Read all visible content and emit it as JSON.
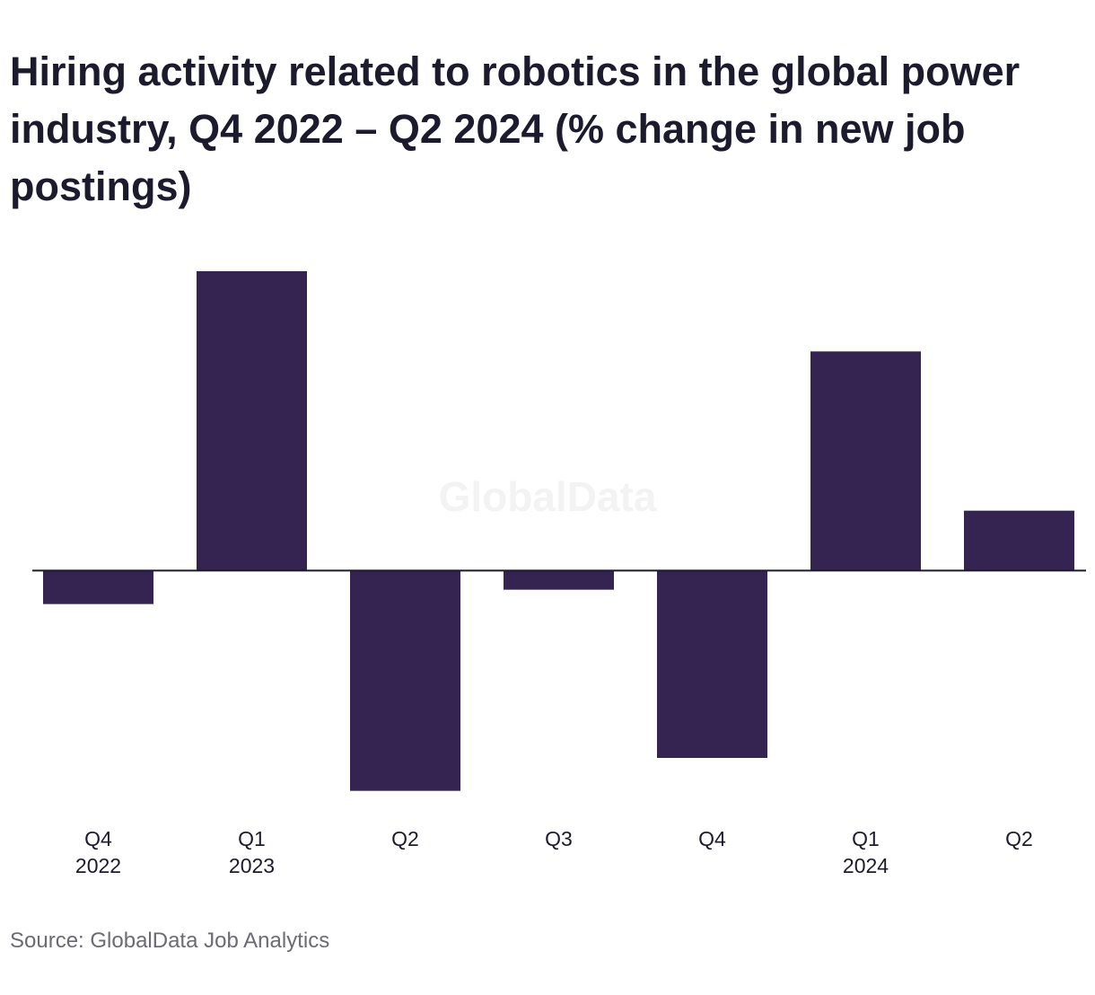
{
  "chart_data": {
    "type": "bar",
    "title": "Hiring activity related to robotics in the global power industry, Q4 2022 – Q2 2024 (% change in new job postings)",
    "categories": [
      [
        "Q4",
        "2022"
      ],
      [
        "Q1",
        "2023"
      ],
      [
        "Q2",
        ""
      ],
      [
        "Q3",
        ""
      ],
      [
        "Q4",
        ""
      ],
      [
        "Q1",
        "2024"
      ],
      [
        "Q2",
        ""
      ]
    ],
    "values": [
      -5.6,
      50.0,
      -36.8,
      -3.2,
      -31.3,
      36.6,
      10.0
    ],
    "ylim": [
      -40,
      50
    ],
    "grid": false,
    "bar_color": "#352452",
    "watermark": "GlobalData",
    "source": "Source: GlobalData Job Analytics"
  }
}
